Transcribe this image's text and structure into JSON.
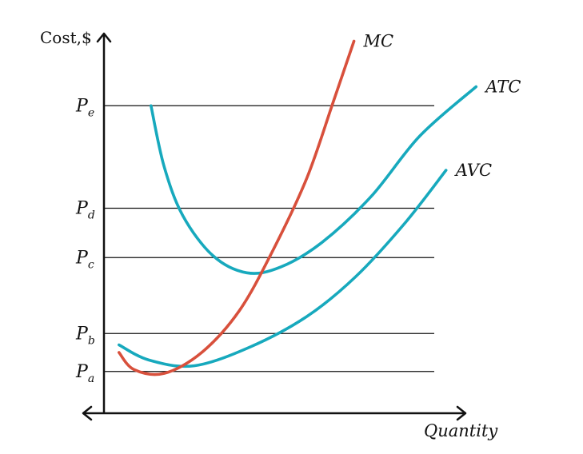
{
  "chart_data": {
    "type": "line",
    "title": "",
    "ylabel": "Cost,$",
    "xlabel": "Quantity",
    "xlim": [
      0,
      10
    ],
    "ylim": [
      0,
      10
    ],
    "grid": false,
    "colors": {
      "MC": "#d8503c",
      "ATC": "#17a9bd",
      "AVC": "#17a9bd",
      "axis": "#111111"
    },
    "price_levels": [
      {
        "main": "P",
        "sub": "e",
        "y": 8.1
      },
      {
        "main": "P",
        "sub": "d",
        "y": 5.4
      },
      {
        "main": "P",
        "sub": "c",
        "y": 4.1
      },
      {
        "main": "P",
        "sub": "b",
        "y": 2.1
      },
      {
        "main": "P",
        "sub": "a",
        "y": 1.1
      }
    ],
    "series": [
      {
        "name": "MC",
        "points": [
          [
            0.4,
            1.6
          ],
          [
            0.8,
            1.15
          ],
          [
            1.6,
            1.05
          ],
          [
            2.6,
            1.6
          ],
          [
            3.6,
            2.7
          ],
          [
            4.5,
            4.3
          ],
          [
            5.4,
            6.2
          ],
          [
            6.1,
            8.2
          ],
          [
            6.65,
            9.8
          ]
        ]
      },
      {
        "name": "ATC",
        "points": [
          [
            1.25,
            8.1
          ],
          [
            1.6,
            6.5
          ],
          [
            2.1,
            5.2
          ],
          [
            2.9,
            4.15
          ],
          [
            3.8,
            3.7
          ],
          [
            4.7,
            3.85
          ],
          [
            5.8,
            4.5
          ],
          [
            7.1,
            5.7
          ],
          [
            8.4,
            7.3
          ],
          [
            9.9,
            8.6
          ]
        ]
      },
      {
        "name": "AVC",
        "points": [
          [
            0.4,
            1.8
          ],
          [
            1.2,
            1.4
          ],
          [
            2.4,
            1.25
          ],
          [
            3.9,
            1.75
          ],
          [
            5.4,
            2.55
          ],
          [
            6.7,
            3.6
          ],
          [
            8.0,
            5.0
          ],
          [
            9.1,
            6.4
          ]
        ]
      }
    ]
  }
}
